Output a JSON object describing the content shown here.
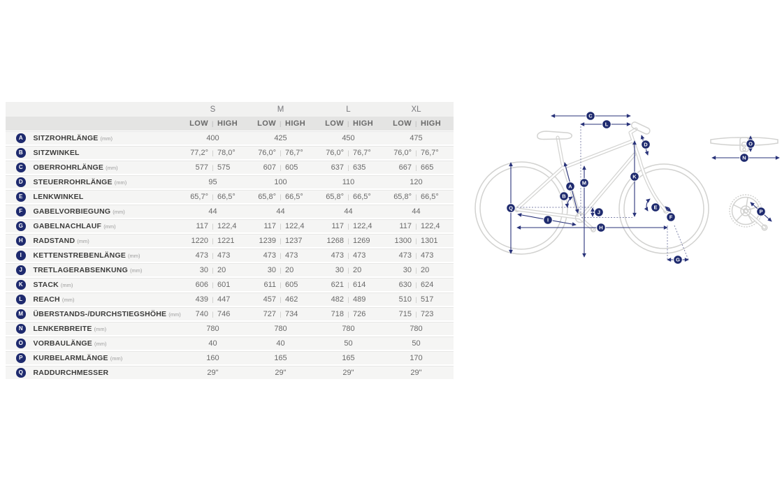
{
  "colors": {
    "accent_navy": "#1e2a6e",
    "row_bg": "#f5f5f4",
    "size_header_bg": "#f1f1f0",
    "lowhigh_header_bg": "#e4e4e3",
    "bike_outline": "#d2d2d0"
  },
  "table": {
    "sizes": [
      "S",
      "M",
      "L",
      "XL"
    ],
    "low_label": "LOW",
    "high_label": "HIGH",
    "rows": [
      {
        "letter": "A",
        "label": "SITZROHRLÄNGE",
        "unit": "(mm)",
        "values": [
          [
            "400"
          ],
          [
            "425"
          ],
          [
            "450"
          ],
          [
            "475"
          ]
        ]
      },
      {
        "letter": "B",
        "label": "SITZWINKEL",
        "unit": "",
        "values": [
          [
            "77,2°",
            "78,0°"
          ],
          [
            "76,0°",
            "76,7°"
          ],
          [
            "76,0°",
            "76,7°"
          ],
          [
            "76,0°",
            "76,7°"
          ]
        ]
      },
      {
        "letter": "C",
        "label": "OBERROHRLÄNGE",
        "unit": "(mm)",
        "values": [
          [
            "577",
            "575"
          ],
          [
            "607",
            "605"
          ],
          [
            "637",
            "635"
          ],
          [
            "667",
            "665"
          ]
        ]
      },
      {
        "letter": "D",
        "label": "STEUERROHRLÄNGE",
        "unit": "(mm)",
        "values": [
          [
            "95"
          ],
          [
            "100"
          ],
          [
            "110"
          ],
          [
            "120"
          ]
        ]
      },
      {
        "letter": "E",
        "label": "LENKWINKEL",
        "unit": "",
        "values": [
          [
            "65,7°",
            "66,5°"
          ],
          [
            "65,8°",
            "66,5°"
          ],
          [
            "65,8°",
            "66,5°"
          ],
          [
            "65,8°",
            "66,5°"
          ]
        ]
      },
      {
        "letter": "F",
        "label": "GABELVORBIEGUNG",
        "unit": "(mm)",
        "values": [
          [
            "44"
          ],
          [
            "44"
          ],
          [
            "44"
          ],
          [
            "44"
          ]
        ]
      },
      {
        "letter": "G",
        "label": "GABELNACHLAUF",
        "unit": "(mm)",
        "values": [
          [
            "117",
            "122,4"
          ],
          [
            "117",
            "122,4"
          ],
          [
            "117",
            "122,4"
          ],
          [
            "117",
            "122,4"
          ]
        ]
      },
      {
        "letter": "H",
        "label": "RADSTAND",
        "unit": "(mm)",
        "values": [
          [
            "1220",
            "1221"
          ],
          [
            "1239",
            "1237"
          ],
          [
            "1268",
            "1269"
          ],
          [
            "1300",
            "1301"
          ]
        ]
      },
      {
        "letter": "I",
        "label": "KETTENSTREBENLÄNGE",
        "unit": "(mm)",
        "values": [
          [
            "473",
            "473"
          ],
          [
            "473",
            "473"
          ],
          [
            "473",
            "473"
          ],
          [
            "473",
            "473"
          ]
        ]
      },
      {
        "letter": "J",
        "label": "TRETLAGERABSENKUNG",
        "unit": "(mm)",
        "values": [
          [
            "30",
            "20"
          ],
          [
            "30",
            "20"
          ],
          [
            "30",
            "20"
          ],
          [
            "30",
            "20"
          ]
        ]
      },
      {
        "letter": "K",
        "label": "STACK",
        "unit": "(mm)",
        "values": [
          [
            "606",
            "601"
          ],
          [
            "611",
            "605"
          ],
          [
            "621",
            "614"
          ],
          [
            "630",
            "624"
          ]
        ]
      },
      {
        "letter": "L",
        "label": "REACH",
        "unit": "(mm)",
        "values": [
          [
            "439",
            "447"
          ],
          [
            "457",
            "462"
          ],
          [
            "482",
            "489"
          ],
          [
            "510",
            "517"
          ]
        ]
      },
      {
        "letter": "M",
        "label": "ÜBERSTANDS-/DURCHSTIEGSHÖHE",
        "unit": "(mm)",
        "values": [
          [
            "740",
            "746"
          ],
          [
            "727",
            "734"
          ],
          [
            "718",
            "726"
          ],
          [
            "715",
            "723"
          ]
        ]
      },
      {
        "letter": "N",
        "label": "LENKERBREITE",
        "unit": "(mm)",
        "values": [
          [
            "780"
          ],
          [
            "780"
          ],
          [
            "780"
          ],
          [
            "780"
          ]
        ]
      },
      {
        "letter": "O",
        "label": "VORBAULÄNGE",
        "unit": "(mm)",
        "values": [
          [
            "40"
          ],
          [
            "40"
          ],
          [
            "50"
          ],
          [
            "50"
          ]
        ]
      },
      {
        "letter": "P",
        "label": "KURBELARMLÄNGE",
        "unit": "(mm)",
        "values": [
          [
            "160"
          ],
          [
            "165"
          ],
          [
            "165"
          ],
          [
            "170"
          ]
        ]
      },
      {
        "letter": "Q",
        "label": "RADDURCHMESSER",
        "unit": "",
        "values": [
          [
            "29\""
          ],
          [
            "29\""
          ],
          [
            "29\""
          ],
          [
            "29\""
          ]
        ]
      }
    ]
  },
  "diagram": {
    "badges": [
      "A",
      "B",
      "C",
      "D",
      "E",
      "F",
      "G",
      "H",
      "I",
      "J",
      "K",
      "L",
      "M",
      "N",
      "O",
      "P",
      "Q"
    ]
  }
}
